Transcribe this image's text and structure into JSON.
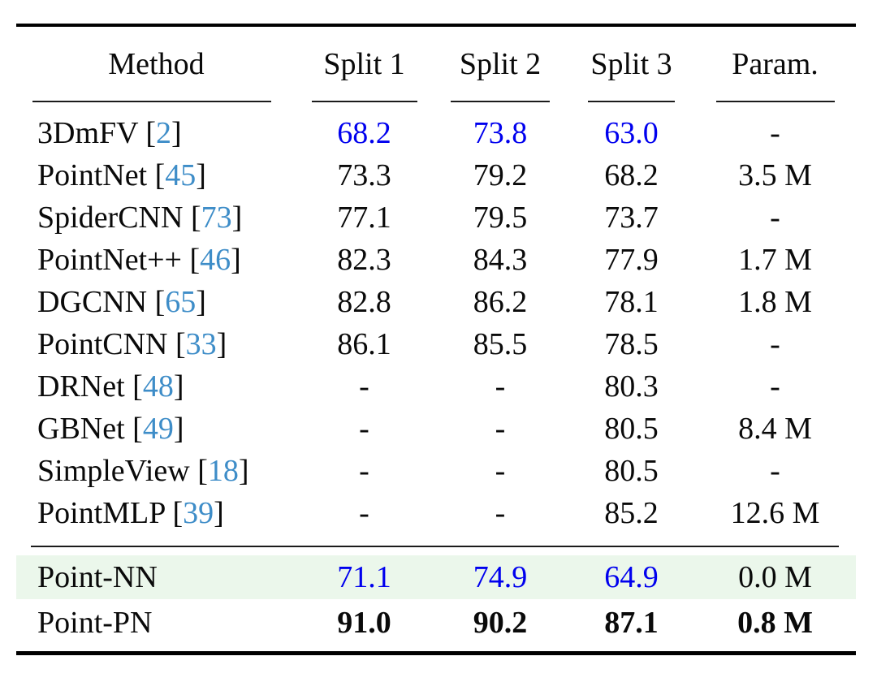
{
  "colors": {
    "value_blue": "#0000EE",
    "cite_blue": "#3E8DC8",
    "highlight_green": "#EBF7EB",
    "rule_black": "#000000"
  },
  "table": {
    "columns": [
      "Method",
      "Split 1",
      "Split 2",
      "Split 3",
      "Param."
    ],
    "body_rows": [
      {
        "method": "3DmFV",
        "cite": "2",
        "values": [
          "68.2",
          "73.8",
          "63.0",
          "-"
        ],
        "blue_splits": true
      },
      {
        "method": "PointNet",
        "cite": "45",
        "values": [
          "73.3",
          "79.2",
          "68.2",
          "3.5 M"
        ]
      },
      {
        "method": "SpiderCNN",
        "cite": "73",
        "values": [
          "77.1",
          "79.5",
          "73.7",
          "-"
        ]
      },
      {
        "method": "PointNet++",
        "cite": "46",
        "values": [
          "82.3",
          "84.3",
          "77.9",
          "1.7 M"
        ]
      },
      {
        "method": "DGCNN",
        "cite": "65",
        "values": [
          "82.8",
          "86.2",
          "78.1",
          "1.8 M"
        ]
      },
      {
        "method": "PointCNN",
        "cite": "33",
        "values": [
          "86.1",
          "85.5",
          "78.5",
          "-"
        ]
      },
      {
        "method": "DRNet",
        "cite": "48",
        "values": [
          "-",
          "-",
          "80.3",
          "-"
        ]
      },
      {
        "method": "GBNet",
        "cite": "49",
        "values": [
          "-",
          "-",
          "80.5",
          "8.4 M"
        ]
      },
      {
        "method": "SimpleView",
        "cite": "18",
        "values": [
          "-",
          "-",
          "80.5",
          "-"
        ]
      },
      {
        "method": "PointMLP",
        "cite": "39",
        "values": [
          "-",
          "-",
          "85.2",
          "12.6 M"
        ]
      }
    ],
    "footer_rows": [
      {
        "method": "Point-NN",
        "values": [
          "71.1",
          "74.9",
          "64.9",
          "0.0 M"
        ],
        "blue_splits": true,
        "highlight": true
      },
      {
        "method": "Point-PN",
        "values": [
          "91.0",
          "90.2",
          "87.1",
          "0.8 M"
        ],
        "bold_values": true
      }
    ]
  }
}
